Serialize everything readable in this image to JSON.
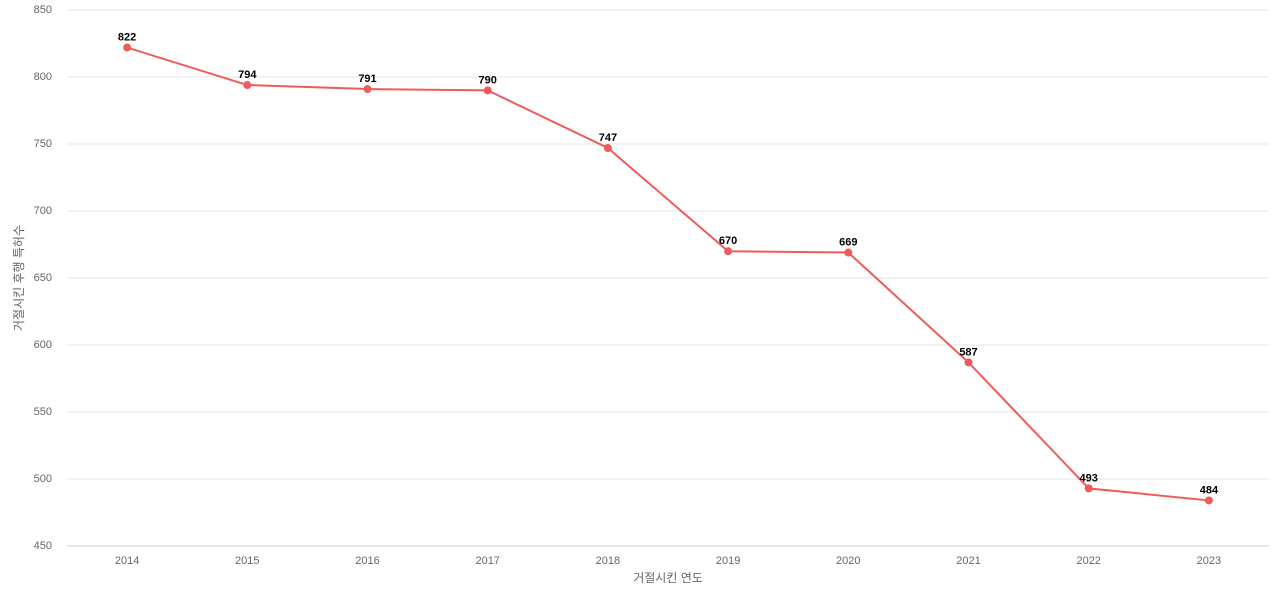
{
  "chart_data": {
    "type": "line",
    "x_label": "거절시킨 연도",
    "y_label": "거절시킨 후행 특허수",
    "categories": [
      "2014",
      "2015",
      "2016",
      "2017",
      "2018",
      "2019",
      "2020",
      "2021",
      "2022",
      "2023"
    ],
    "values": [
      822,
      794,
      791,
      790,
      747,
      670,
      669,
      587,
      493,
      484
    ],
    "color": "#ef5b5b",
    "ylim": [
      450,
      850
    ],
    "yticks": [
      450,
      500,
      550,
      600,
      650,
      700,
      750,
      800,
      850
    ],
    "grid": true
  }
}
